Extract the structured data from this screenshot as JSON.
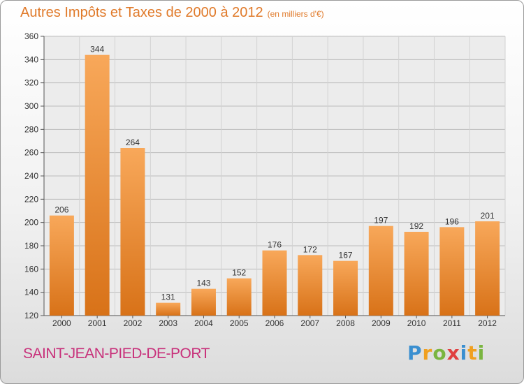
{
  "chart_data": {
    "type": "bar",
    "title": "Autres Impôts et Taxes de 2000 à 2012",
    "subtitle": "(en milliers d'€)",
    "categories": [
      "2000",
      "2001",
      "2002",
      "2003",
      "2004",
      "2005",
      "2006",
      "2007",
      "2008",
      "2009",
      "2010",
      "2011",
      "2012"
    ],
    "values": [
      206,
      344,
      264,
      131,
      143,
      152,
      176,
      172,
      167,
      197,
      192,
      196,
      201
    ],
    "ylim": [
      120,
      360
    ],
    "yticks": [
      120,
      140,
      160,
      180,
      200,
      220,
      240,
      260,
      280,
      300,
      320,
      340,
      360
    ],
    "grid": true,
    "bar_color": "#f0983f"
  },
  "footer": {
    "city": "SAINT-JEAN-PIED-DE-PORT",
    "logo_letters": [
      {
        "ch": "P",
        "color": "#3a8fd0"
      },
      {
        "ch": "r",
        "color": "#f0a020"
      },
      {
        "ch": "o",
        "color": "#7ab540"
      },
      {
        "ch": "x",
        "color": "#e04040"
      },
      {
        "ch": "i",
        "color": "#3a8fd0"
      },
      {
        "ch": "t",
        "color": "#f0a020"
      },
      {
        "ch": "i",
        "color": "#7ab540"
      }
    ]
  }
}
